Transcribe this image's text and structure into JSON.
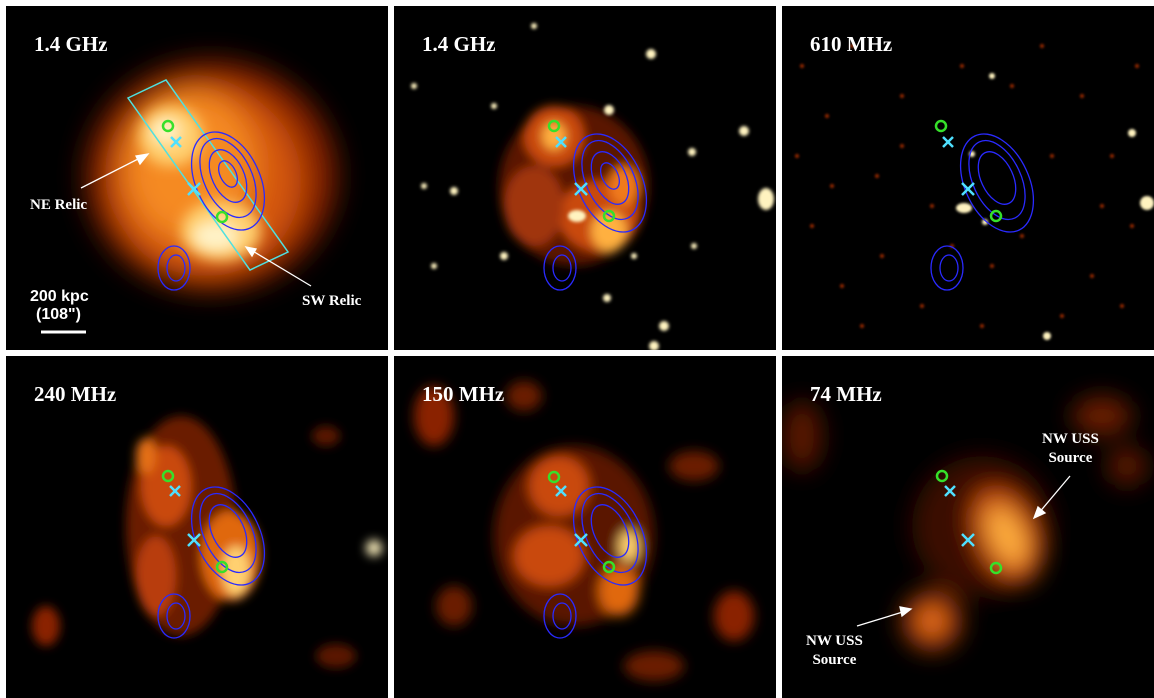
{
  "panels": [
    {
      "freq": "1.4 GHz"
    },
    {
      "freq": "1.4 GHz"
    },
    {
      "freq": "610 MHz"
    },
    {
      "freq": "240 MHz"
    },
    {
      "freq": "150 MHz"
    },
    {
      "freq": "74 MHz"
    }
  ],
  "annotations": {
    "ne_relic": "NE Relic",
    "sw_relic": "SW Relic",
    "scale_kpc": "200 kpc",
    "scale_arcsec": "(108\")",
    "nw_uss_top_line1": "NW USS",
    "nw_uss_top_line2": "Source",
    "nw_uss_bottom_line1": "NW USS",
    "nw_uss_bottom_line2": "Source"
  },
  "colors": {
    "emission_core": "#fff2b0",
    "emission_mid": "#ff9a2a",
    "emission_outer": "#a02a06",
    "contour": "#2a2aff",
    "cross": "#4fe0ff",
    "circle": "#36e02a",
    "region_box": "#4fe0e0"
  }
}
